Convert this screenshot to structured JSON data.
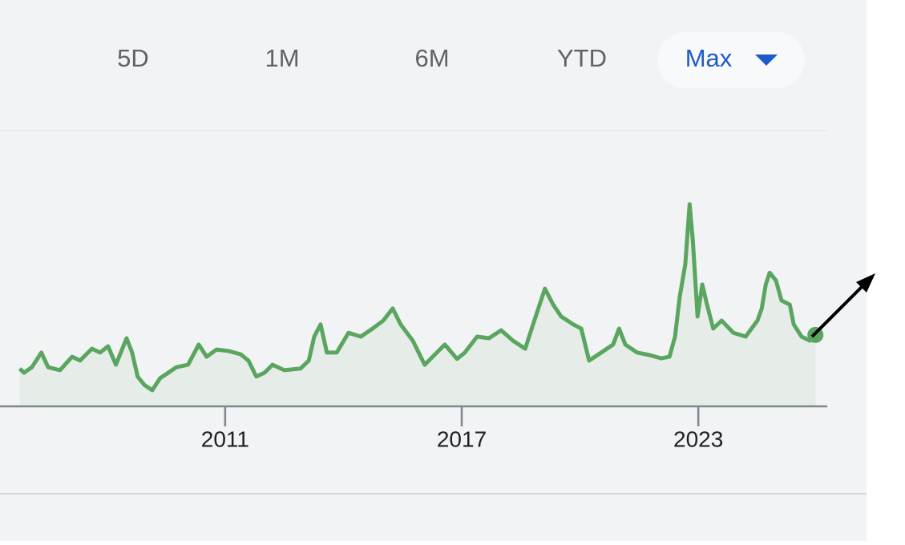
{
  "ranges": [
    "5D",
    "1M",
    "6M",
    "YTD",
    "Max"
  ],
  "chart_data": {
    "type": "line",
    "xlim": [
      2005.29,
      2026.27
    ],
    "xticks": [
      2011,
      2017,
      2023
    ],
    "ylim": [
      0,
      100
    ],
    "series": [
      {
        "color": "#5aa55f",
        "x": [
          2005.79,
          2005.9,
          2006.1,
          2006.34,
          2006.51,
          2006.81,
          2007.12,
          2007.32,
          2007.62,
          2007.83,
          2008.03,
          2008.23,
          2008.5,
          2008.64,
          2008.78,
          2008.95,
          2009.15,
          2009.35,
          2009.56,
          2009.76,
          2010.06,
          2010.33,
          2010.53,
          2010.78,
          2011.08,
          2011.39,
          2011.59,
          2011.79,
          2012.0,
          2012.2,
          2012.5,
          2012.91,
          2013.12,
          2013.26,
          2013.42,
          2013.58,
          2013.83,
          2014.13,
          2014.44,
          2014.74,
          2015.01,
          2015.25,
          2015.45,
          2015.76,
          2016.06,
          2016.37,
          2016.57,
          2016.88,
          2017.08,
          2017.39,
          2017.69,
          2018.0,
          2018.3,
          2018.61,
          2018.81,
          2019.11,
          2019.32,
          2019.52,
          2019.83,
          2020.03,
          2020.23,
          2020.54,
          2020.84,
          2020.99,
          2021.15,
          2021.45,
          2021.76,
          2022.06,
          2022.27,
          2022.41,
          2022.53,
          2022.67,
          2022.78,
          2022.86,
          2022.98,
          2023.1,
          2023.22,
          2023.38,
          2023.59,
          2023.89,
          2024.2,
          2024.5,
          2024.61,
          2024.71,
          2024.81,
          2024.97,
          2025.11,
          2025.32,
          2025.42,
          2025.62,
          2025.83,
          2025.97
        ],
        "values": [
          13.7,
          12.2,
          14.2,
          19.5,
          14.2,
          13.1,
          18.0,
          16.6,
          20.9,
          19.5,
          21.8,
          15.1,
          24.7,
          19.5,
          10.8,
          7.8,
          5.8,
          10.2,
          12.2,
          14.2,
          15.1,
          22.4,
          18.0,
          20.6,
          20.1,
          18.9,
          16.6,
          10.8,
          12.2,
          15.1,
          13.1,
          13.7,
          16.6,
          25.3,
          29.7,
          19.5,
          19.5,
          26.7,
          25.3,
          28.2,
          31.1,
          35.5,
          29.7,
          23.8,
          15.1,
          19.5,
          22.4,
          17.2,
          19.5,
          25.3,
          24.7,
          27.6,
          23.8,
          20.9,
          29.7,
          42.7,
          36.9,
          32.6,
          29.7,
          28.2,
          16.6,
          19.5,
          22.4,
          28.2,
          22.4,
          19.5,
          18.6,
          17.4,
          18.0,
          25.3,
          39.8,
          51.5,
          73.3,
          60.2,
          32.6,
          44.2,
          36.9,
          28.2,
          31.1,
          26.7,
          25.3,
          31.1,
          35.5,
          44.2,
          48.5,
          45.6,
          38.4,
          36.9,
          29.7,
          25.3,
          23.8,
          25.9
        ]
      }
    ]
  }
}
